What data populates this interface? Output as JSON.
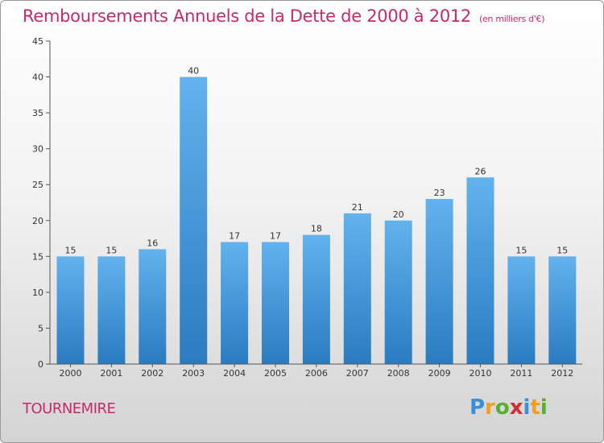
{
  "header": {
    "title": "Remboursements Annuels de la Dette de 2000 à 2012",
    "unit": "(en milliers d'€)"
  },
  "commune": "TOURNEMIRE",
  "logo": {
    "text": "Proxiti",
    "letters": [
      "P",
      "r",
      "o",
      "x",
      "i",
      "t",
      "i"
    ],
    "colors": [
      "#3a8fd8",
      "#f0a020",
      "#58b030",
      "#d03030",
      "#3a8fd8",
      "#f0a020",
      "#58b030"
    ]
  },
  "chart_data": {
    "type": "bar",
    "title": "Remboursements Annuels de la Dette de 2000 à 2012",
    "categories": [
      "2000",
      "2001",
      "2002",
      "2003",
      "2004",
      "2005",
      "2006",
      "2007",
      "2008",
      "2009",
      "2010",
      "2011",
      "2012"
    ],
    "values": [
      15,
      15,
      16,
      40,
      17,
      17,
      18,
      21,
      20,
      23,
      26,
      15,
      15
    ],
    "ylim": [
      0,
      45
    ],
    "yticks": [
      0,
      5,
      10,
      15,
      20,
      25,
      30,
      35,
      40,
      45
    ],
    "grid": false,
    "bar_color_top": "#62b2ee",
    "bar_color_bottom": "#2a7cc0"
  }
}
